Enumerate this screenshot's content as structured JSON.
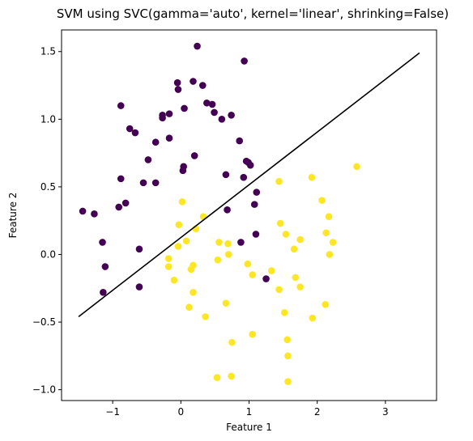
{
  "chart_data": {
    "type": "scatter",
    "title": "SVM using SVC(gamma='auto', kernel='linear', shrinking=False)",
    "xlabel": "Feature 1",
    "ylabel": "Feature 2",
    "xlim": [
      -1.75,
      3.75
    ],
    "ylim": [
      -1.08,
      1.66
    ],
    "xticks": [
      -1,
      0,
      1,
      2,
      3
    ],
    "xtick_labels": [
      "−1",
      "0",
      "1",
      "2",
      "3"
    ],
    "yticks": [
      -1.0,
      -0.5,
      0.0,
      0.5,
      1.0,
      1.5
    ],
    "ytick_labels": [
      "−1.0",
      "−0.5",
      "0.0",
      "0.5",
      "1.0",
      "1.5"
    ],
    "grid": false,
    "colors": {
      "class0": "#440154",
      "class1": "#fde725",
      "boundary": "#000000"
    },
    "decision_boundary": {
      "x": [
        -1.5,
        3.5
      ],
      "y": [
        -0.46,
        1.49
      ]
    },
    "series": [
      {
        "class": 0,
        "points": [
          [
            0.24,
            1.54
          ],
          [
            0.93,
            1.43
          ],
          [
            -0.05,
            1.27
          ],
          [
            0.18,
            1.28
          ],
          [
            0.32,
            1.25
          ],
          [
            -0.04,
            1.22
          ],
          [
            -0.88,
            1.1
          ],
          [
            0.05,
            1.08
          ],
          [
            0.38,
            1.12
          ],
          [
            0.46,
            1.11
          ],
          [
            0.49,
            1.05
          ],
          [
            0.74,
            1.03
          ],
          [
            0.6,
            1.0
          ],
          [
            -0.27,
            1.03
          ],
          [
            -0.27,
            1.01
          ],
          [
            -0.17,
            1.04
          ],
          [
            -0.75,
            0.93
          ],
          [
            -0.67,
            0.9
          ],
          [
            -0.17,
            0.86
          ],
          [
            0.86,
            0.84
          ],
          [
            -0.37,
            0.83
          ],
          [
            -0.48,
            0.7
          ],
          [
            0.96,
            0.69
          ],
          [
            0.99,
            0.68
          ],
          [
            0.2,
            0.73
          ],
          [
            1.02,
            0.66
          ],
          [
            0.04,
            0.65
          ],
          [
            0.03,
            0.62
          ],
          [
            0.66,
            0.59
          ],
          [
            0.92,
            0.57
          ],
          [
            -0.88,
            0.56
          ],
          [
            -0.55,
            0.53
          ],
          [
            -0.37,
            0.53
          ],
          [
            1.11,
            0.46
          ],
          [
            1.08,
            0.37
          ],
          [
            -0.81,
            0.38
          ],
          [
            -0.91,
            0.35
          ],
          [
            0.68,
            0.33
          ],
          [
            -1.44,
            0.32
          ],
          [
            -1.27,
            0.3
          ],
          [
            1.1,
            0.15
          ],
          [
            0.88,
            0.09
          ],
          [
            -1.15,
            0.09
          ],
          [
            -0.61,
            0.04
          ],
          [
            -1.11,
            -0.09
          ],
          [
            1.25,
            -0.18
          ],
          [
            -0.61,
            -0.24
          ],
          [
            -1.14,
            -0.28
          ]
        ]
      },
      {
        "class": 1,
        "points": [
          [
            2.58,
            0.65
          ],
          [
            1.92,
            0.57
          ],
          [
            1.44,
            0.54
          ],
          [
            2.07,
            0.4
          ],
          [
            0.02,
            0.39
          ],
          [
            0.33,
            0.28
          ],
          [
            2.17,
            0.28
          ],
          [
            1.46,
            0.23
          ],
          [
            -0.03,
            0.22
          ],
          [
            0.22,
            0.19
          ],
          [
            1.54,
            0.15
          ],
          [
            2.13,
            0.16
          ],
          [
            1.75,
            0.11
          ],
          [
            0.08,
            0.1
          ],
          [
            0.56,
            0.09
          ],
          [
            0.69,
            0.08
          ],
          [
            2.23,
            0.09
          ],
          [
            -0.04,
            0.06
          ],
          [
            1.66,
            0.04
          ],
          [
            2.18,
            0.0
          ],
          [
            0.7,
            0.0
          ],
          [
            -0.18,
            -0.03
          ],
          [
            0.54,
            -0.04
          ],
          [
            0.98,
            -0.07
          ],
          [
            0.18,
            -0.08
          ],
          [
            -0.18,
            -0.09
          ],
          [
            0.15,
            -0.11
          ],
          [
            1.33,
            -0.12
          ],
          [
            1.05,
            -0.15
          ],
          [
            1.68,
            -0.17
          ],
          [
            -0.1,
            -0.19
          ],
          [
            1.75,
            -0.24
          ],
          [
            1.44,
            -0.26
          ],
          [
            0.18,
            -0.28
          ],
          [
            0.66,
            -0.36
          ],
          [
            2.12,
            -0.37
          ],
          [
            0.12,
            -0.39
          ],
          [
            1.52,
            -0.43
          ],
          [
            0.36,
            -0.46
          ],
          [
            1.93,
            -0.47
          ],
          [
            1.05,
            -0.59
          ],
          [
            1.56,
            -0.63
          ],
          [
            0.75,
            -0.65
          ],
          [
            1.57,
            -0.75
          ],
          [
            0.74,
            -0.9
          ],
          [
            0.53,
            -0.91
          ],
          [
            1.57,
            -0.94
          ]
        ]
      }
    ]
  }
}
